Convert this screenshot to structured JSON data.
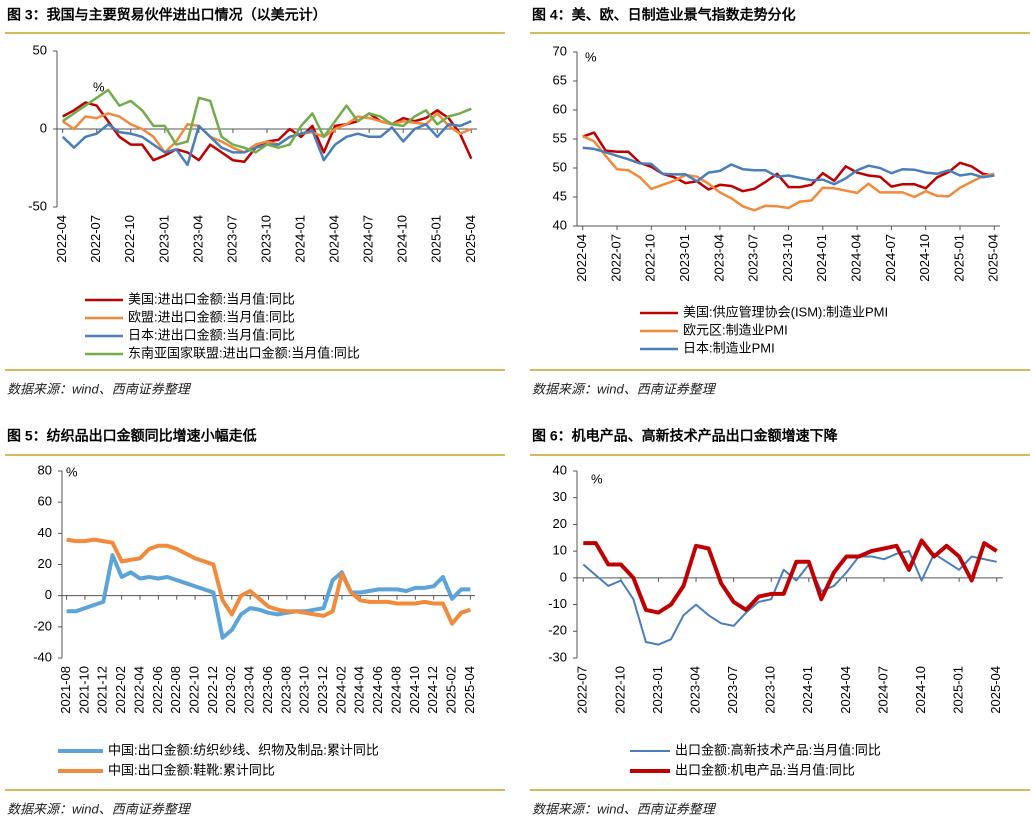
{
  "chart_data": [
    {
      "type": "line",
      "title": "图 3：我国与主要贸易伙伴进出口情况（以美元计）",
      "source": "数据来源：wind、西南证券整理",
      "unit": "%",
      "categories": [
        "2022-04",
        null,
        null,
        "2022-07",
        null,
        null,
        "2022-10",
        null,
        null,
        "2023-01",
        null,
        null,
        "2023-04",
        null,
        null,
        "2023-07",
        null,
        null,
        "2023-10",
        null,
        null,
        "2024-01",
        null,
        null,
        "2024-04",
        null,
        null,
        "2024-07",
        null,
        null,
        "2024-10",
        null,
        null,
        "2025-01",
        null,
        null,
        "2025-04"
      ],
      "ylim": [
        -50,
        50
      ],
      "yticks": [
        -50,
        0,
        50
      ],
      "series": [
        {
          "name": "美国:进出口金额:当月值:同比",
          "color": "#c00000",
          "line_width": 2.5,
          "values": [
            8,
            12,
            17,
            15,
            5,
            -5,
            -10,
            -10,
            -20,
            -17,
            -13,
            -15,
            -20,
            -10,
            -15,
            -20,
            -21,
            -12,
            -8,
            -7,
            0,
            -5,
            2,
            -15,
            2,
            3,
            5,
            10,
            5,
            3,
            7,
            5,
            7,
            12,
            7,
            -3,
            -19
          ]
        },
        {
          "name": "欧盟:进出口金额:当月值:同比",
          "color": "#f08a3c",
          "line_width": 2.5,
          "values": [
            5,
            0,
            8,
            7,
            10,
            8,
            3,
            0,
            -5,
            -15,
            -8,
            3,
            2,
            -5,
            -8,
            -12,
            -15,
            -10,
            -8,
            -10,
            -5,
            -3,
            -2,
            -5,
            0,
            3,
            8,
            7,
            5,
            3,
            5,
            4,
            3,
            10,
            2,
            -3,
            0
          ]
        },
        {
          "name": "日本:进出口金额:当月值:同比",
          "color": "#4a7ebb",
          "line_width": 2.5,
          "values": [
            -5,
            -12,
            -5,
            -3,
            3,
            -2,
            -3,
            -5,
            -10,
            -15,
            -13,
            -23,
            2,
            -5,
            -12,
            -15,
            -15,
            -12,
            -10,
            -10,
            -5,
            -3,
            -1,
            -20,
            -10,
            -5,
            -3,
            -5,
            -5,
            1,
            -8,
            0,
            3,
            -5,
            3,
            2,
            5
          ]
        },
        {
          "name": "东南亚国家联盟:进出口金额:当月值:同比",
          "color": "#72ac4d",
          "line_width": 2.5,
          "values": [
            5,
            10,
            15,
            20,
            25,
            15,
            18,
            12,
            2,
            2,
            -10,
            -8,
            20,
            18,
            -5,
            -10,
            -12,
            -15,
            -10,
            -12,
            -10,
            2,
            10,
            -5,
            5,
            15,
            5,
            10,
            8,
            3,
            2,
            8,
            12,
            3,
            8,
            10,
            13
          ]
        }
      ]
    },
    {
      "type": "line",
      "title": "图 4：美、欧、日制造业景气指数走势分化",
      "source": "数据来源：wind、西南证券整理",
      "unit": "%",
      "categories": [
        "2022-04",
        null,
        null,
        "2022-07",
        null,
        null,
        "2022-10",
        null,
        null,
        "2023-01",
        null,
        null,
        "2023-04",
        null,
        null,
        "2023-07",
        null,
        null,
        "2023-10",
        null,
        null,
        "2024-01",
        null,
        null,
        "2024-04",
        null,
        null,
        "2024-07",
        null,
        null,
        "2024-10",
        null,
        null,
        "2025-01",
        null,
        null,
        "2025-04"
      ],
      "ylim": [
        40,
        70
      ],
      "yticks": [
        40,
        45,
        50,
        55,
        60,
        65,
        70
      ],
      "series": [
        {
          "name": "美国:供应管理协会(ISM):制造业PMI",
          "color": "#c00000",
          "line_width": 2.5,
          "values": [
            55.4,
            56.1,
            53,
            52.8,
            52.8,
            50.9,
            50.2,
            49,
            48.4,
            47.4,
            47.7,
            46.3,
            47.1,
            46.9,
            46,
            46.4,
            47.6,
            49,
            46.7,
            46.7,
            47.1,
            49.1,
            47.8,
            50.3,
            49.2,
            48.7,
            48.5,
            46.8,
            47.2,
            47.2,
            46.5,
            48.4,
            49.3,
            50.9,
            50.3,
            49,
            48.7
          ]
        },
        {
          "name": "欧元区:制造业PMI",
          "color": "#f08a3c",
          "line_width": 2.5,
          "values": [
            55.5,
            54.6,
            52.1,
            49.8,
            49.6,
            48.4,
            46.4,
            47.1,
            47.8,
            48.8,
            48.5,
            47.3,
            45.8,
            44.8,
            43.4,
            42.7,
            43.5,
            43.4,
            43.1,
            44.2,
            44.4,
            46.6,
            46.5,
            46.1,
            45.7,
            47.3,
            45.8,
            45.8,
            45.8,
            45,
            46,
            45.2,
            45.1,
            46.6,
            47.6,
            48.6,
            49
          ]
        },
        {
          "name": "日本:制造业PMI",
          "color": "#4a7ebb",
          "line_width": 2.5,
          "values": [
            53.5,
            53.3,
            52.7,
            52.1,
            51.5,
            50.8,
            50.7,
            49,
            48.9,
            48.9,
            47.7,
            49.2,
            49.5,
            50.6,
            49.8,
            49.6,
            49.6,
            48.5,
            48.7,
            48.3,
            47.9,
            48,
            47.2,
            48.2,
            49.6,
            50.4,
            50,
            49.1,
            49.8,
            49.7,
            49.2,
            49,
            49.6,
            48.7,
            49,
            48.4,
            48.7
          ]
        }
      ]
    },
    {
      "type": "line",
      "title": "图 5：纺织品出口金额同比增速小幅走低",
      "source": "数据来源：wind、西南证券整理",
      "unit": "%",
      "categories": [
        "2021-08",
        null,
        "2021-10",
        null,
        "2021-12",
        null,
        "2022-02",
        null,
        "2022-04",
        null,
        "2022-06",
        null,
        "2022-08",
        null,
        "2022-10",
        null,
        "2022-12",
        null,
        "2023-02",
        null,
        "2023-04",
        null,
        "2023-06",
        null,
        "2023-08",
        null,
        "2023-10",
        null,
        "2023-12",
        null,
        "2024-02",
        null,
        "2024-04",
        null,
        "2024-06",
        null,
        "2024-08",
        null,
        "2024-10",
        null,
        "2024-12",
        null,
        "2025-02",
        null,
        "2025-04"
      ],
      "ylim": [
        -40,
        80
      ],
      "yticks": [
        -40,
        -20,
        0,
        20,
        40,
        60,
        80
      ],
      "series": [
        {
          "name": "中国:出口金额:纺织纱线、织物及制品:累计同比",
          "color": "#5ba3d9",
          "line_width": 4,
          "values": [
            -10,
            -10,
            -8,
            -6,
            -4,
            26,
            12,
            15,
            11,
            12,
            11,
            12,
            10,
            8,
            6,
            4,
            2,
            -27,
            -22,
            -12,
            -8,
            -9,
            -11,
            -12,
            -11,
            -10,
            -10,
            -9,
            -8,
            10,
            15,
            2,
            2,
            3,
            4,
            4,
            4,
            3,
            5,
            5,
            6,
            12,
            -2,
            4,
            4
          ]
        },
        {
          "name": "中国:出口金额:鞋靴:累计同比",
          "color": "#f08a3c",
          "line_width": 4,
          "values": [
            36,
            35,
            35,
            36,
            35,
            34,
            22,
            23,
            24,
            30,
            32,
            32,
            30,
            27,
            24,
            22,
            20,
            -3,
            -12,
            0,
            3,
            -2,
            -7,
            -9,
            -10,
            -10,
            -11,
            -12,
            -13,
            -10,
            14,
            2,
            -3,
            -4,
            -4,
            -4,
            -5,
            -5,
            -5,
            -4,
            -5,
            -5,
            -18,
            -11,
            -9
          ]
        }
      ]
    },
    {
      "type": "line",
      "title": "图 6：机电产品、高新技术产品出口金额增速下降",
      "source": "数据来源：wind、西南证券整理",
      "unit": "%",
      "categories": [
        "2022-07",
        null,
        null,
        "2022-10",
        null,
        null,
        "2023-01",
        null,
        null,
        "2023-04",
        null,
        null,
        "2023-07",
        null,
        null,
        "2023-10",
        null,
        null,
        "2024-01",
        null,
        null,
        "2024-04",
        null,
        null,
        "2024-07",
        null,
        null,
        "2024-10",
        null,
        null,
        "2025-01",
        null,
        null,
        "2025-04"
      ],
      "ylim": [
        -30,
        40
      ],
      "yticks": [
        -30,
        -20,
        -10,
        0,
        10,
        20,
        30,
        40
      ],
      "series": [
        {
          "name": "出口金额:高新技术产品:当月值:同比",
          "color": "#4a7ebb",
          "line_width": 2,
          "values": [
            5,
            1,
            -3,
            -1,
            -8,
            -24,
            -25,
            -23,
            -14,
            -10,
            -14,
            -17,
            -18,
            -13,
            -9,
            -8,
            3,
            -1,
            5,
            -5,
            -3,
            2,
            8,
            8,
            7,
            9,
            10,
            -1,
            9,
            6,
            3,
            8,
            7,
            6
          ]
        },
        {
          "name": "出口金额:机电产品:当月值:同比",
          "color": "#c00000",
          "line_width": 4,
          "values": [
            13,
            13,
            5,
            5,
            0,
            -12,
            -13,
            -10,
            -3,
            12,
            11,
            -2,
            -9,
            -12,
            -7,
            -6,
            -6,
            6,
            6,
            -8,
            2,
            8,
            8,
            10,
            11,
            12,
            3,
            14,
            8,
            12,
            8,
            -1,
            13,
            10
          ]
        }
      ]
    }
  ]
}
